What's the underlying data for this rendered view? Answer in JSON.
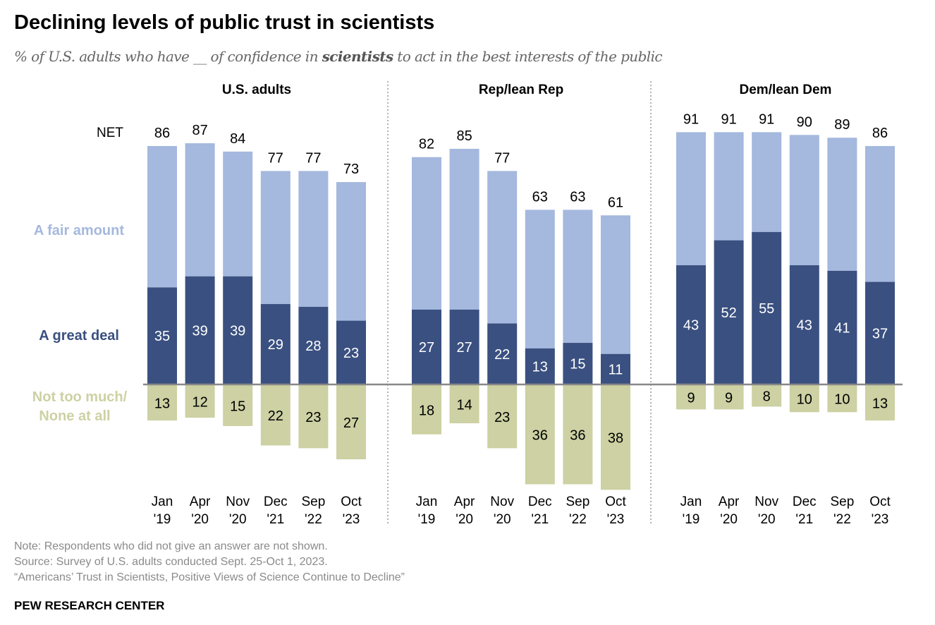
{
  "title": "Declining levels of public trust in scientists",
  "subtitle": {
    "before": "% of U.S. adults who have __ of confidence in ",
    "bold": "scientists",
    "after": " to act in the best interests of the public"
  },
  "colors": {
    "great_deal": "#3a5080",
    "fair_amount": "#a5b8de",
    "not_too_much": "#cdd1a3",
    "baseline": "#888888"
  },
  "chart_data": {
    "type": "bar",
    "stacked": "diverging",
    "legend": {
      "net": "NET",
      "fair_amount": "A fair amount",
      "great_deal": "A great deal",
      "not_too_much": "Not too much/\nNone at all"
    },
    "categories": [
      [
        "Jan",
        "'19"
      ],
      [
        "Apr",
        "'20"
      ],
      [
        "Nov",
        "'20"
      ],
      [
        "Dec",
        "'21"
      ],
      [
        "Sep",
        "'22"
      ],
      [
        "Oct",
        "'23"
      ]
    ],
    "panels": [
      {
        "name": "U.S. adults",
        "net": [
          86,
          87,
          84,
          77,
          77,
          73
        ],
        "great_deal": [
          35,
          39,
          39,
          29,
          28,
          23
        ],
        "not_too_much": [
          13,
          12,
          15,
          22,
          23,
          27
        ]
      },
      {
        "name": "Rep/lean Rep",
        "net": [
          82,
          85,
          77,
          63,
          63,
          61
        ],
        "great_deal": [
          27,
          27,
          22,
          13,
          15,
          11
        ],
        "not_too_much": [
          18,
          14,
          23,
          36,
          36,
          38
        ]
      },
      {
        "name": "Dem/lean Dem",
        "net": [
          91,
          91,
          91,
          90,
          89,
          86
        ],
        "great_deal": [
          43,
          52,
          55,
          43,
          41,
          37
        ],
        "not_too_much": [
          9,
          9,
          8,
          10,
          10,
          13
        ]
      }
    ]
  },
  "notes": [
    "Note: Respondents who did not give an answer are not shown.",
    "Source: Survey of U.S. adults conducted Sept. 25-Oct 1, 2023.",
    "“Americans’ Trust in Scientists, Positive Views of Science Continue to Decline”"
  ],
  "brand": "PEW RESEARCH CENTER"
}
